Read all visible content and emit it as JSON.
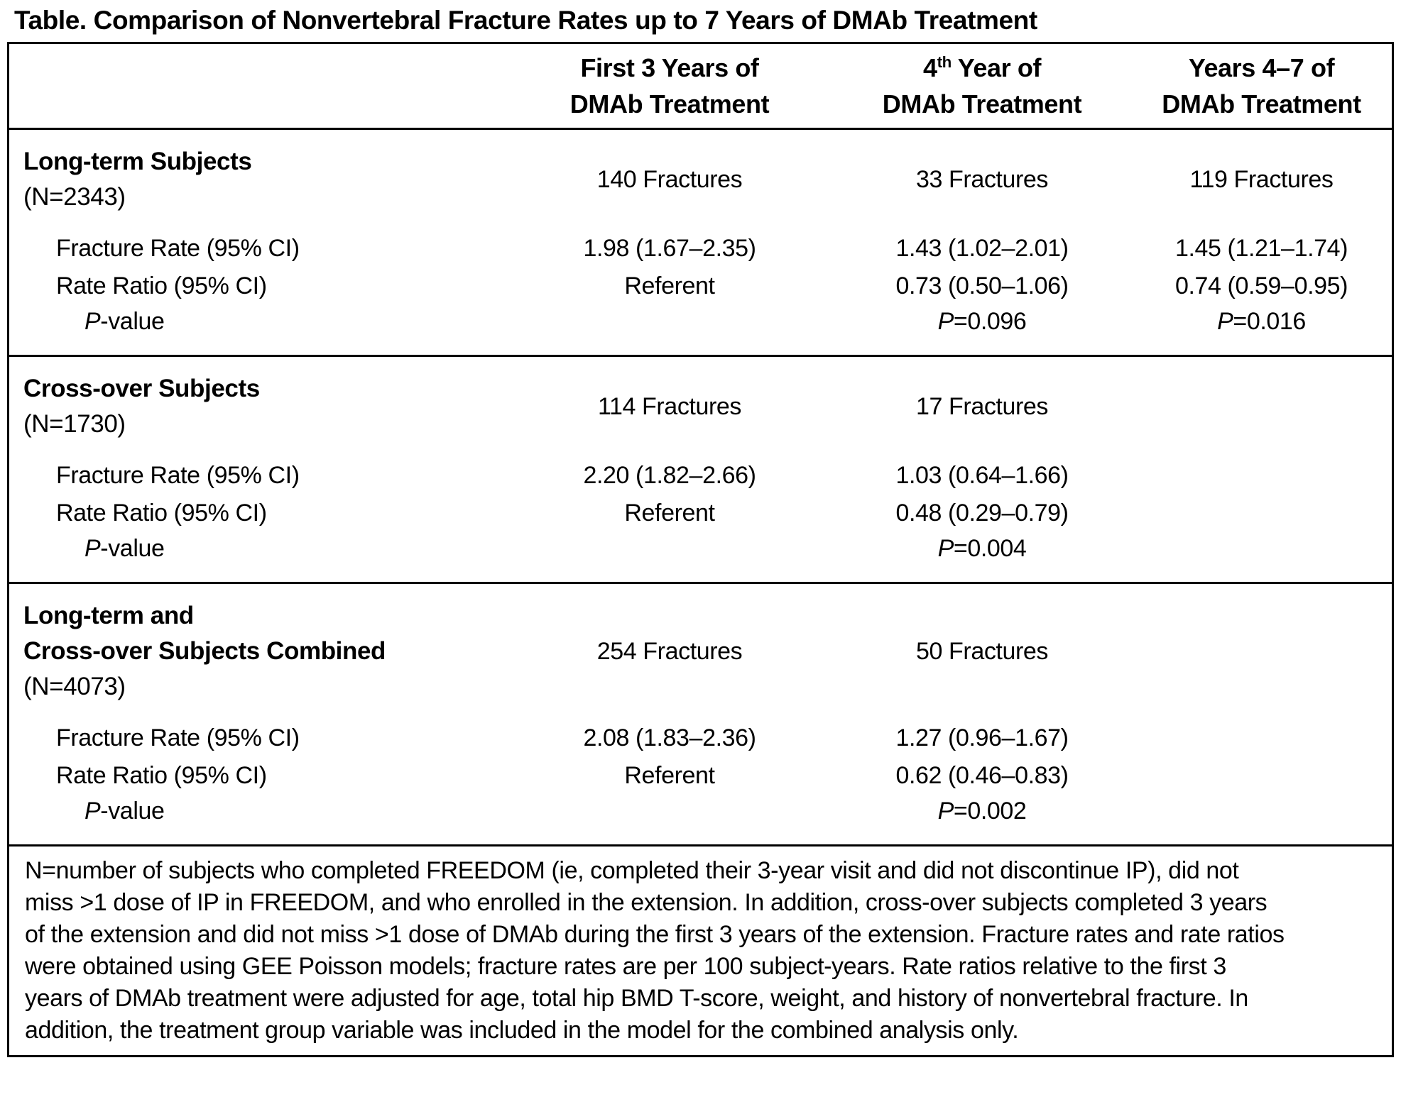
{
  "title": "Table. Comparison of Nonvertebral Fracture Rates up to 7 Years of DMAb Treatment",
  "columns": {
    "first3": {
      "line1": "First 3 Years of",
      "line2": "DMAb Treatment"
    },
    "fourth": {
      "line1_base": "4",
      "line1_sup": "th",
      "line1_rest": " Year of",
      "line2": "DMAb Treatment"
    },
    "years47": {
      "line1": "Years 4–7 of",
      "line2": "DMAb Treatment"
    }
  },
  "row_labels": {
    "fracture_rate": "Fracture Rate (95% CI)",
    "rate_ratio": "Rate Ratio (95% CI)",
    "p_italic": "P",
    "p_rest": "-value"
  },
  "sections": [
    {
      "name_lines": [
        "Long-term Subjects"
      ],
      "n": "(N=2343)",
      "fractures": [
        "140 Fractures",
        "33 Fractures",
        "119 Fractures"
      ],
      "rates": [
        "1.98 (1.67–2.35)",
        "1.43 (1.02–2.01)",
        "1.45 (1.21–1.74)"
      ],
      "ratios": [
        "Referent",
        "0.73 (0.50–1.06)",
        "0.74 (0.59–0.95)"
      ],
      "pvalues": [
        "",
        "=0.096",
        "=0.016"
      ]
    },
    {
      "name_lines": [
        "Cross-over Subjects"
      ],
      "n": "(N=1730)",
      "fractures": [
        "114 Fractures",
        "17 Fractures",
        ""
      ],
      "rates": [
        "2.20 (1.82–2.66)",
        "1.03 (0.64–1.66)",
        ""
      ],
      "ratios": [
        "Referent",
        "0.48 (0.29–0.79)",
        ""
      ],
      "pvalues": [
        "",
        "=0.004",
        ""
      ]
    },
    {
      "name_lines": [
        "Long-term and",
        "Cross-over Subjects Combined"
      ],
      "n": "(N=4073)",
      "fractures": [
        "254 Fractures",
        "50 Fractures",
        ""
      ],
      "rates": [
        "2.08 (1.83–2.36)",
        "1.27 (0.96–1.67)",
        ""
      ],
      "ratios": [
        "Referent",
        "0.62 (0.46–0.83)",
        ""
      ],
      "pvalues": [
        "",
        "=0.002",
        ""
      ]
    }
  ],
  "footnote": "N=number of subjects who completed FREEDOM (ie, completed their 3-year visit and did not discontinue IP), did not miss >1 dose of IP in FREEDOM, and who enrolled in the extension. In addition, cross-over subjects completed 3 years of the extension and did not miss >1 dose of DMAb during the first 3 years of the extension. Fracture rates and rate ratios were obtained using GEE Poisson models; fracture rates are per 100 subject-years. Rate ratios relative to the first 3 years of DMAb treatment were adjusted for age, total hip BMD T-score, weight, and history of nonvertebral fracture. In addition, the treatment group variable was included in the model for the combined analysis only."
}
